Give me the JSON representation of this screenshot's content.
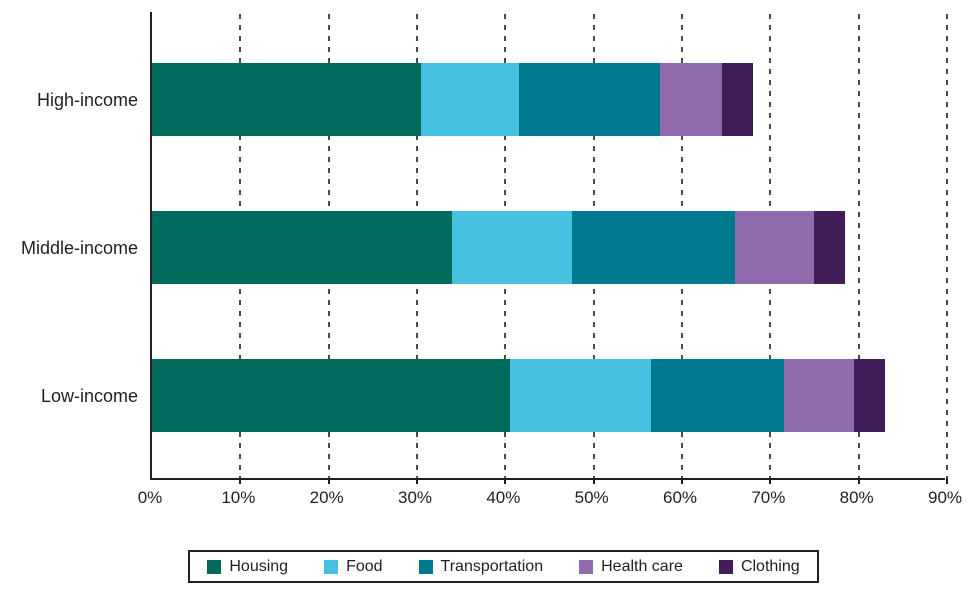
{
  "chart_data": {
    "type": "bar",
    "orientation": "horizontal",
    "stacked": true,
    "title": "",
    "xlabel": "",
    "ylabel": "",
    "categories": [
      "High-income",
      "Middle-income",
      "Low-income"
    ],
    "series": [
      {
        "name": "Housing",
        "color": "#006B5D",
        "values": [
          30.5,
          34.0,
          40.5
        ]
      },
      {
        "name": "Food",
        "color": "#46C2E0",
        "values": [
          11.0,
          13.5,
          16.0
        ]
      },
      {
        "name": "Transportation",
        "color": "#00798E",
        "values": [
          16.0,
          18.5,
          15.0
        ]
      },
      {
        "name": "Health care",
        "color": "#8F6AAD",
        "values": [
          7.0,
          9.0,
          8.0
        ]
      },
      {
        "name": "Clothing",
        "color": "#411E5A",
        "values": [
          3.5,
          3.5,
          3.5
        ]
      }
    ],
    "xlim": [
      0,
      90
    ],
    "x_tick_step": 10,
    "x_tick_labels": [
      "0%",
      "10%",
      "20%",
      "30%",
      "40%",
      "50%",
      "60%",
      "70%",
      "80%",
      "90%"
    ],
    "grid": "vertical-dashed",
    "legend_position": "bottom",
    "axis_color": "#231f20",
    "gridline_color": "#4a4a4a"
  }
}
